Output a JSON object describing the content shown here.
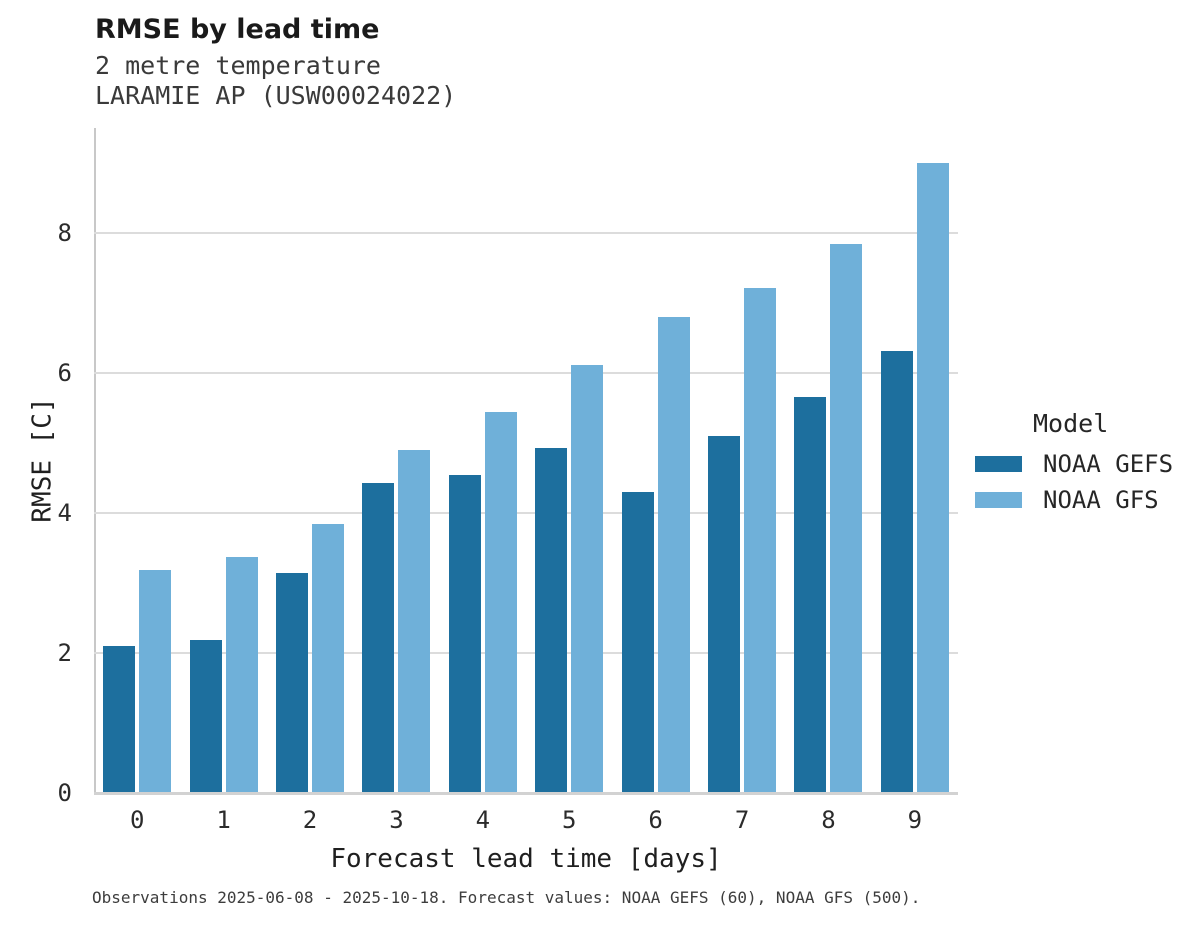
{
  "chart_data": {
    "type": "bar",
    "title": "RMSE by lead time",
    "subtitle_lines": [
      "2 metre temperature",
      "LARAMIE AP (USW00024022)"
    ],
    "xlabel": "Forecast lead time [days]",
    "ylabel": "RMSE [C]",
    "categories": [
      "0",
      "1",
      "2",
      "3",
      "4",
      "5",
      "6",
      "7",
      "8",
      "9"
    ],
    "series": [
      {
        "name": "NOAA GEFS",
        "color": "#1d6f9e",
        "values": [
          2.1,
          2.18,
          3.14,
          4.43,
          4.55,
          4.93,
          4.3,
          5.1,
          5.66,
          6.31
        ]
      },
      {
        "name": "NOAA GFS",
        "color": "#6fb0d9",
        "values": [
          3.18,
          3.37,
          3.85,
          4.9,
          5.45,
          6.11,
          6.8,
          7.21,
          7.84,
          9.0
        ]
      }
    ],
    "ylim": [
      0,
      9.5
    ],
    "yticks": [
      0,
      2,
      4,
      6,
      8
    ],
    "grid": "horizontal",
    "legend": {
      "title": "Model",
      "position": "right-center"
    }
  },
  "caption": {
    "text": "Observations 2025-06-08 - 2025-10-18. Forecast values: NOAA GEFS (60), NOAA GFS (500)."
  }
}
